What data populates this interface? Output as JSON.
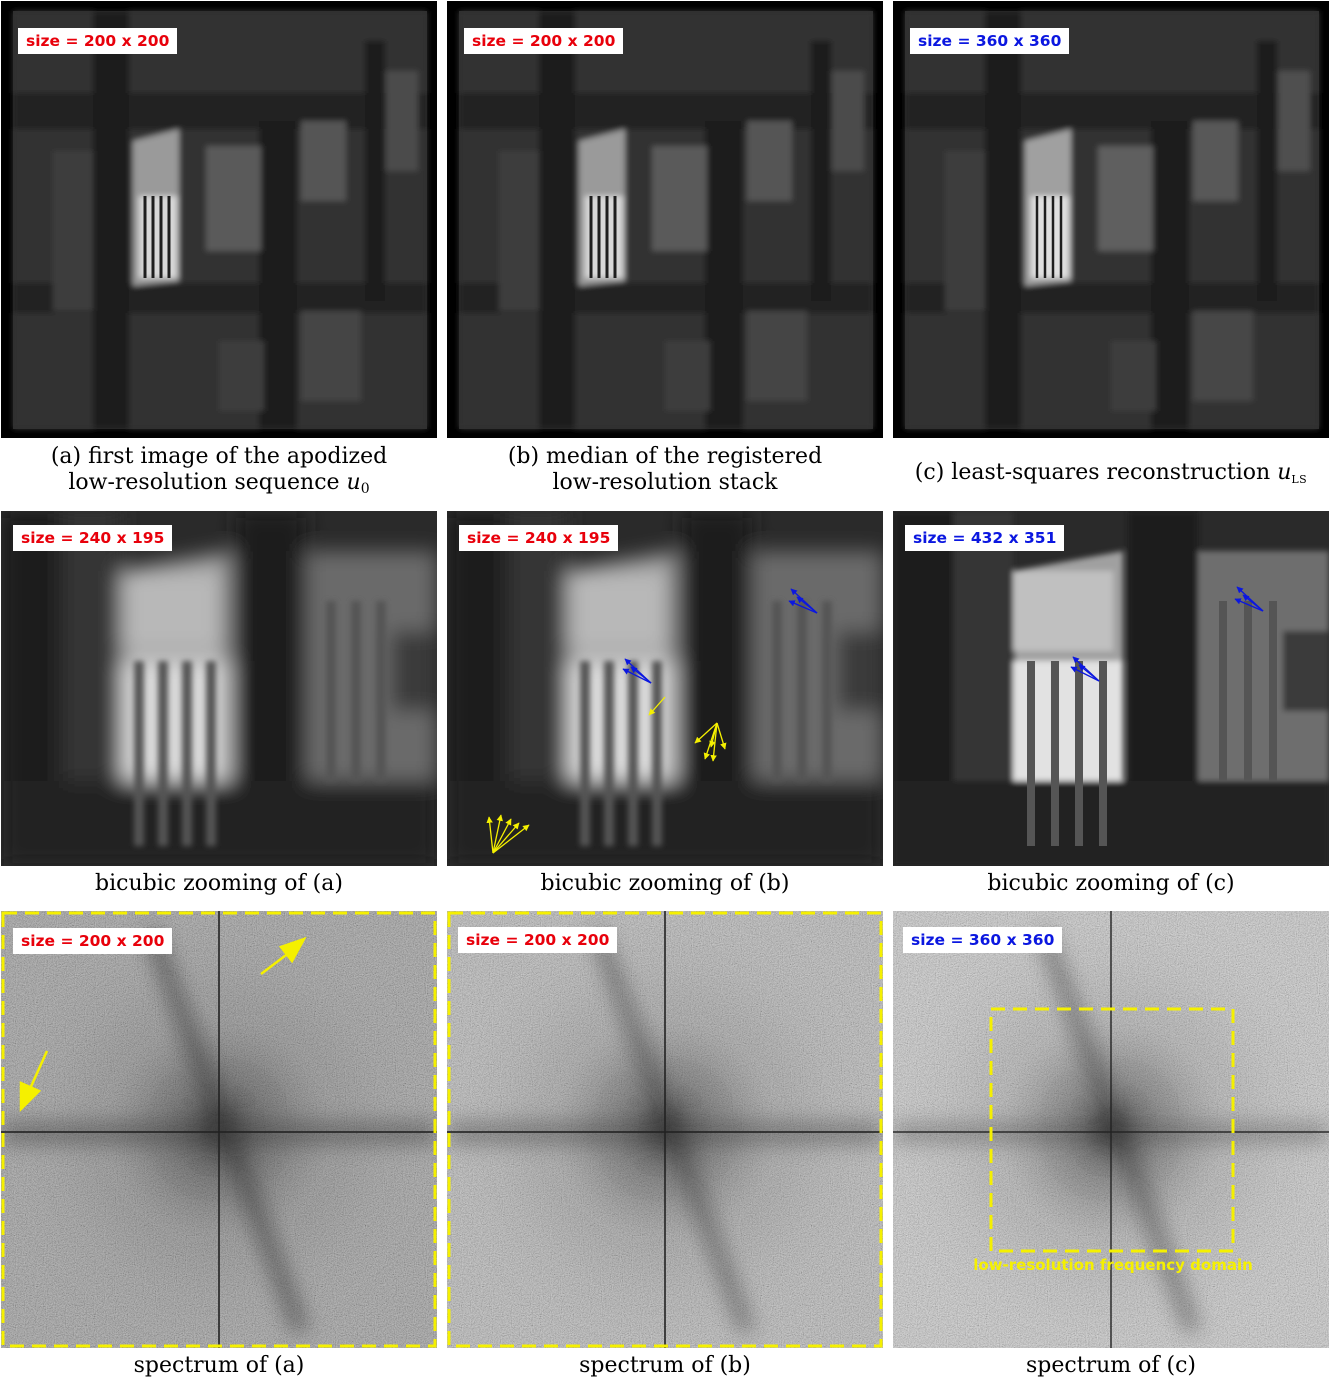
{
  "rows": [
    {
      "panels": [
        {
          "badge": "size = 200 x 200",
          "badge_color": "red"
        },
        {
          "badge": "size = 200 x 200",
          "badge_color": "red"
        },
        {
          "badge": "size = 360 x 360",
          "badge_color": "blue"
        }
      ],
      "captions": [
        {
          "line1": "(a) first image of the apodized",
          "line2": "low-resolution sequence ",
          "math": "u",
          "sub": "0"
        },
        {
          "line1": "(b) median of the registered",
          "line2": "low-resolution stack"
        },
        {
          "line1": "(c) least-squares reconstruction ",
          "math": "u",
          "sub": "LS"
        }
      ]
    },
    {
      "panels": [
        {
          "badge": "size = 240 x 195",
          "badge_color": "red"
        },
        {
          "badge": "size = 240 x 195",
          "badge_color": "red"
        },
        {
          "badge": "size = 432 x 351",
          "badge_color": "blue"
        }
      ],
      "captions": [
        {
          "line1": "bicubic zooming of (a)"
        },
        {
          "line1": "bicubic zooming of (b)"
        },
        {
          "line1": "bicubic zooming of (c)"
        }
      ]
    },
    {
      "panels": [
        {
          "badge": "size = 200 x 200",
          "badge_color": "red"
        },
        {
          "badge": "size = 200 x 200",
          "badge_color": "red"
        },
        {
          "badge": "size = 360 x 360",
          "badge_color": "blue"
        }
      ],
      "captions": [
        {
          "line1": "spectrum of (a)"
        },
        {
          "line1": "spectrum of (b)"
        },
        {
          "line1": "spectrum of (c)"
        }
      ]
    }
  ],
  "annotation": {
    "low_res_domain": "low-resolution frequency domain"
  },
  "colors": {
    "red": "#e8000b",
    "blue": "#0b17e0",
    "yellow": "#f5f000"
  }
}
